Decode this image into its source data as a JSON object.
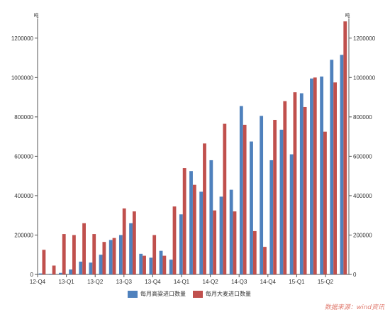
{
  "chart_data": {
    "type": "bar",
    "title": "",
    "y_unit_left": "吨",
    "y_unit_right": "吨",
    "ylim": [
      0,
      1300000
    ],
    "yticks": [
      0,
      200000,
      400000,
      600000,
      800000,
      1000000,
      1200000
    ],
    "x_tick_labels": [
      "12-Q4",
      "13-Q1",
      "13-Q2",
      "13-Q3",
      "13-Q4",
      "14-Q1",
      "14-Q2",
      "14-Q3",
      "14-Q4",
      "15-Q1",
      "15-Q2"
    ],
    "series": [
      {
        "name": "每月高粱进口数量",
        "color": "#4f81bd",
        "values": [
          5000,
          3000,
          8000,
          25000,
          65000,
          60000,
          100000,
          175000,
          200000,
          260000,
          105000,
          85000,
          120000,
          75000,
          305000,
          525000,
          420000,
          580000,
          395000,
          430000,
          855000,
          675000,
          805000,
          580000,
          735000,
          610000,
          920000,
          995000,
          1005000,
          1090000,
          1115000
        ]
      },
      {
        "name": "每月大麦进口数量",
        "color": "#c0504d",
        "values": [
          125000,
          45000,
          205000,
          200000,
          260000,
          205000,
          165000,
          185000,
          335000,
          320000,
          95000,
          200000,
          95000,
          345000,
          540000,
          455000,
          665000,
          325000,
          765000,
          320000,
          760000,
          220000,
          140000,
          785000,
          880000,
          925000,
          850000,
          1000000,
          725000,
          975000,
          1285000
        ]
      }
    ],
    "legend_position": "bottom",
    "grid": false
  },
  "legend": {
    "sorghum_label": "每月高粱进口数量",
    "barley_label": "每月大麦进口数量"
  },
  "footer": {
    "source": "数据来源：wind资讯"
  }
}
